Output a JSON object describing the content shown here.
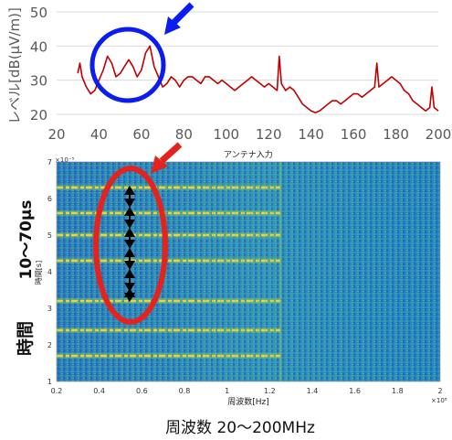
{
  "chart_data": [
    {
      "type": "line",
      "ylabel": "レベル[dB(μV/m)]",
      "xlim": [
        20,
        200
      ],
      "ylim": [
        20,
        50
      ],
      "grid": true,
      "x_ticks": [
        "20",
        "40",
        "60",
        "80",
        "100",
        "120",
        "140",
        "160",
        "180",
        "200"
      ],
      "y_ticks": [
        "20",
        "30",
        "40",
        "50"
      ],
      "series_color": "#c00000",
      "series": [
        {
          "x": [
            30,
            31,
            32,
            34,
            36,
            38,
            40,
            42,
            44,
            46,
            48,
            50,
            52,
            54,
            56,
            58,
            60,
            62,
            64,
            66,
            68,
            70,
            72,
            74,
            76,
            78,
            80,
            82,
            84,
            86,
            88,
            90,
            92,
            94,
            96,
            98,
            100,
            102,
            104,
            106,
            108,
            110,
            112,
            114,
            116,
            118,
            120,
            122,
            124,
            125,
            126,
            128,
            130,
            132,
            134,
            136,
            138,
            140,
            142,
            144,
            146,
            148,
            150,
            152,
            154,
            156,
            158,
            160,
            162,
            164,
            166,
            168,
            170,
            171,
            172,
            174,
            176,
            178,
            180,
            182,
            184,
            186,
            188,
            190,
            192,
            194,
            196,
            197,
            198,
            200
          ],
          "y": [
            32,
            35,
            31,
            28,
            26,
            27,
            30,
            33,
            37,
            35,
            31,
            32,
            34,
            36,
            34,
            31,
            33,
            38,
            40,
            34,
            31,
            28,
            29,
            31,
            30,
            28,
            30,
            31,
            31,
            30,
            29,
            31,
            31,
            30,
            29,
            30,
            29,
            28,
            27,
            28,
            29,
            30,
            31,
            30,
            29,
            28,
            29,
            28,
            27,
            37,
            29,
            27,
            28,
            27,
            25,
            23,
            22,
            21,
            20.5,
            21,
            22,
            23,
            24,
            24,
            23,
            24,
            25,
            26,
            26,
            25,
            26,
            27,
            28,
            35,
            28,
            29,
            30,
            31,
            30,
            29,
            27,
            26,
            24,
            23,
            22,
            21,
            22,
            28,
            22,
            21
          ]
        }
      ],
      "annotations": [
        "blue-circle",
        "blue-arrow"
      ]
    },
    {
      "type": "heatmap",
      "title": "アンテナ入力",
      "xlabel": "周波数[Hz]",
      "ylabel": "時間[s]",
      "x_scale_label": "×10⁸",
      "y_scale_label": "×10⁻⁵",
      "xlim": [
        0.2,
        2.0
      ],
      "ylim": [
        1,
        7
      ],
      "x_ticks": [
        "0.2",
        "0.4",
        "0.6",
        "0.8",
        "1",
        "1.2",
        "1.4",
        "1.6",
        "1.8",
        "2"
      ],
      "y_ticks": [
        "1",
        "2",
        "3",
        "4",
        "5",
        "6",
        "7"
      ],
      "colormap": [
        "#1a56b8",
        "#2b86c7",
        "#3fae9b",
        "#9ccd4a",
        "#f0d73a"
      ],
      "band_times": [
        1.7,
        2.4,
        3.2,
        4.3,
        5.0,
        5.6,
        6.3
      ],
      "band_freq_range": [
        0.2,
        1.25
      ],
      "annotations": [
        "red-ellipse",
        "red-arrow",
        "black-double-arrows"
      ]
    }
  ],
  "side_labels": {
    "time_range": "10～70μs",
    "time_label": "時間"
  },
  "bottom_label": "周波数 20～200MHz",
  "colors": {
    "annotation_blue": "#0a1cf0",
    "annotation_red": "#e5231e",
    "grid": "#d9d9d9",
    "axis_text": "#595959"
  }
}
